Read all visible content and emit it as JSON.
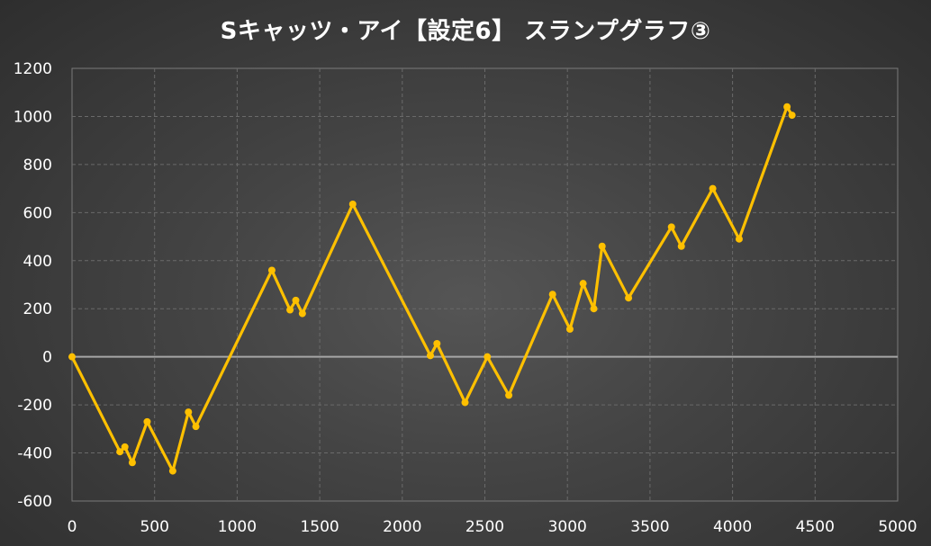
{
  "chart_data": {
    "type": "line",
    "title": "Sキャッツ・アイ【設定6】 スランプグラフ③",
    "xlabel": "",
    "ylabel": "",
    "xlim": [
      0,
      5000
    ],
    "ylim": [
      -600,
      1200
    ],
    "x_ticks": [
      0,
      500,
      1000,
      1500,
      2000,
      2500,
      3000,
      3500,
      4000,
      4500,
      5000
    ],
    "y_ticks": [
      1200,
      1000,
      800,
      600,
      400,
      200,
      0,
      -200,
      -400,
      -600
    ],
    "grid": true,
    "legend": "none",
    "series": [
      {
        "color": "#ffc000",
        "points": [
          [
            0,
            0
          ],
          [
            290,
            -395
          ],
          [
            320,
            -375
          ],
          [
            365,
            -440
          ],
          [
            455,
            -270
          ],
          [
            610,
            -475
          ],
          [
            705,
            -230
          ],
          [
            750,
            -290
          ],
          [
            1210,
            360
          ],
          [
            1320,
            195
          ],
          [
            1355,
            235
          ],
          [
            1395,
            180
          ],
          [
            1700,
            635
          ],
          [
            2170,
            5
          ],
          [
            2210,
            55
          ],
          [
            2380,
            -190
          ],
          [
            2515,
            0
          ],
          [
            2645,
            -160
          ],
          [
            2910,
            260
          ],
          [
            3015,
            115
          ],
          [
            3095,
            305
          ],
          [
            3160,
            200
          ],
          [
            3210,
            460
          ],
          [
            3370,
            245
          ],
          [
            3630,
            540
          ],
          [
            3690,
            460
          ],
          [
            3880,
            700
          ],
          [
            4040,
            490
          ],
          [
            4330,
            1040
          ],
          [
            4360,
            1005
          ]
        ]
      }
    ]
  }
}
